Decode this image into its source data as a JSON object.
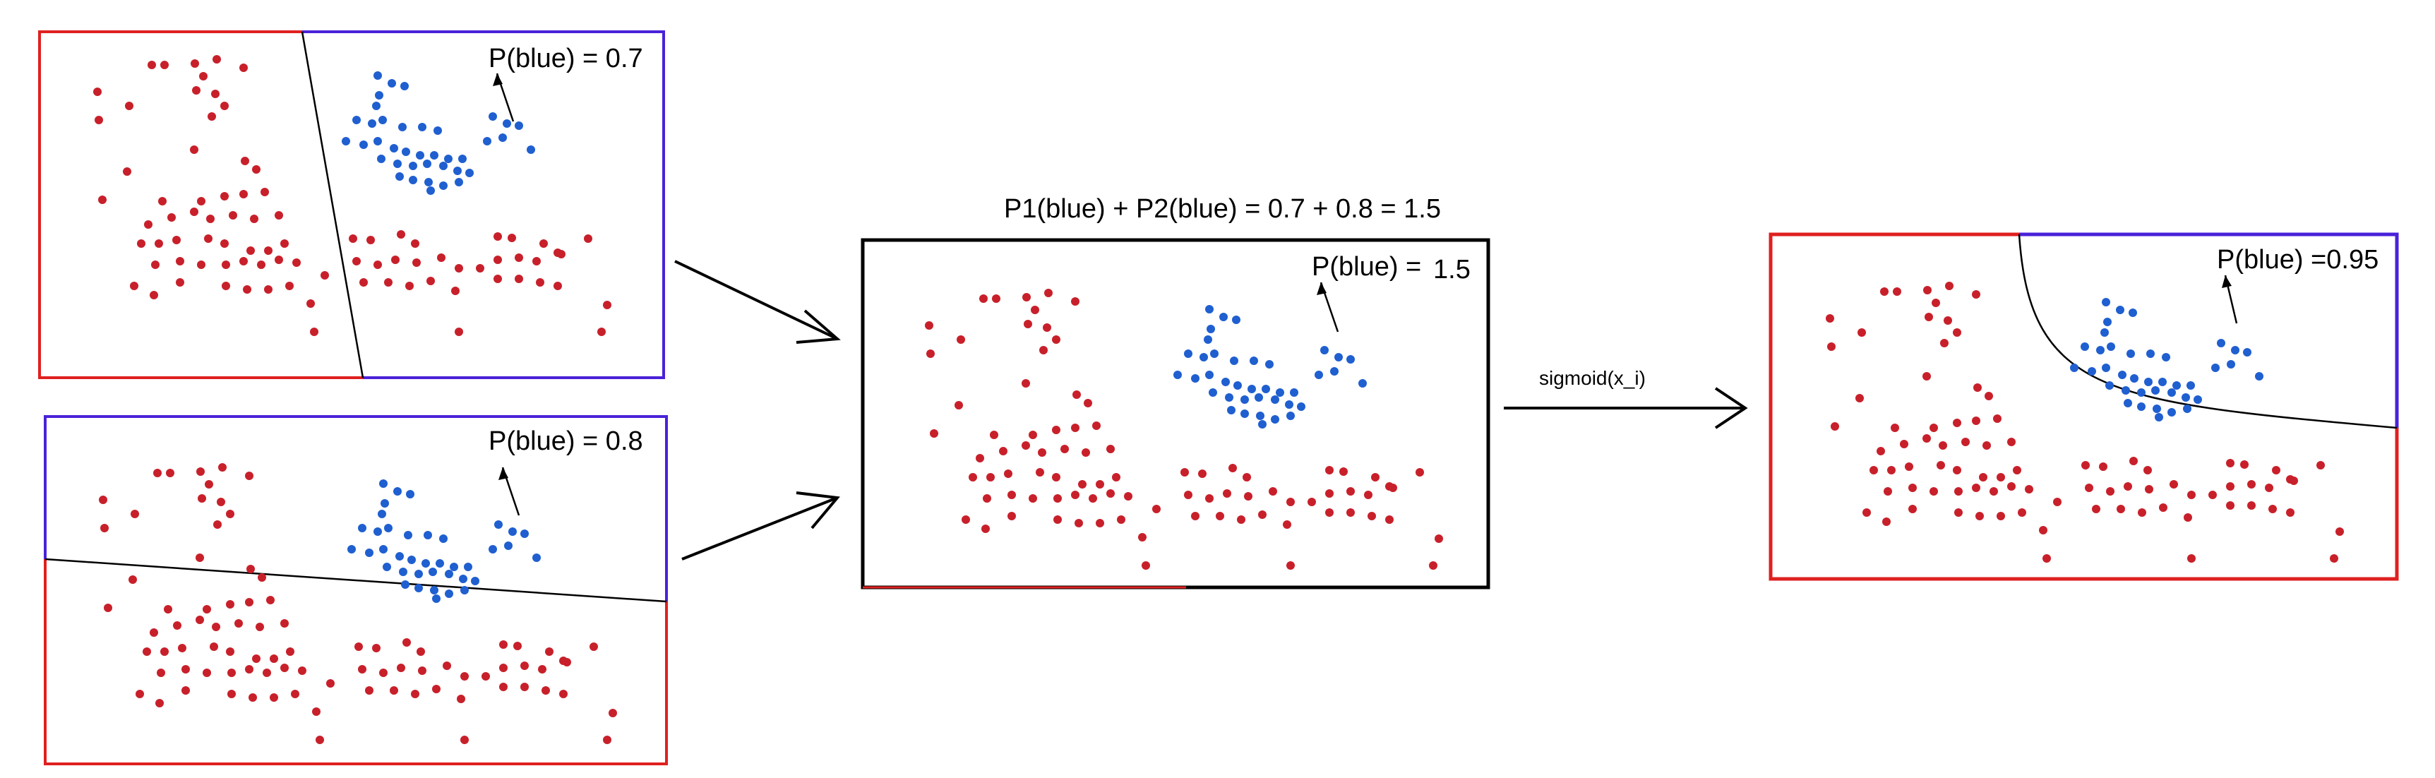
{
  "panels": {
    "top_left": {
      "label": "P(blue) = 0.7"
    },
    "bottom_left": {
      "label": "P(blue) = 0.8"
    },
    "middle": {
      "label_prefix": "P(blue) =",
      "label_value": "1.5",
      "sum_caption": "P1(blue) + P2(blue) = 0.7 + 0.8 = 1.5"
    },
    "right": {
      "label": "P(blue) =0.95"
    }
  },
  "arrows": {
    "sigmoid_label": "sigmoid(x_i)"
  },
  "colors": {
    "red_region": "#e02020",
    "blue_region": "#4a22d8",
    "red_point": "#c8202a",
    "blue_point": "#1f5fd0",
    "border": "#000000"
  }
}
